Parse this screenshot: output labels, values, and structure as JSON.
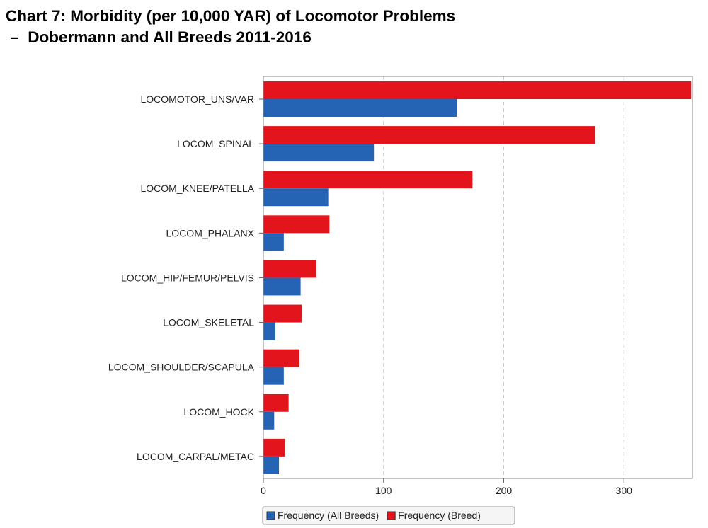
{
  "title_line1": "Chart 7: Morbidity (per 10,000 YAR) of Locomotor Problems",
  "title_line2": " –  Dobermann and All Breeds 2011-2016",
  "colors": {
    "all_breeds": "#2563b5",
    "breed": "#e3141c"
  },
  "chart_data": {
    "type": "bar",
    "orientation": "horizontal",
    "categories": [
      "LOCOMOTOR_UNS/VAR",
      "LOCOM_SPINAL",
      "LOCOM_KNEE/PATELLA",
      "LOCOM_PHALANX",
      "LOCOM_HIP/FEMUR/PELVIS",
      "LOCOM_SKELETAL",
      "LOCOM_SHOULDER/SCAPULA",
      "LOCOM_HOCK",
      "LOCOM_CARPAL/METAC"
    ],
    "series": [
      {
        "name": "Frequency (Breed)",
        "color": "#e3141c",
        "values": [
          356,
          276,
          174,
          55,
          44,
          32,
          30,
          21,
          18
        ]
      },
      {
        "name": "Frequency (All Breeds)",
        "color": "#2563b5",
        "values": [
          161,
          92,
          54,
          17,
          31,
          10,
          17,
          9,
          13
        ]
      }
    ],
    "xlim": [
      0,
      357
    ],
    "xticks": [
      0,
      100,
      200,
      300
    ],
    "grid": "vertical dashed",
    "legend": [
      "Frequency (All Breeds)",
      "Frequency (Breed)"
    ],
    "legend_position": "bottom"
  }
}
